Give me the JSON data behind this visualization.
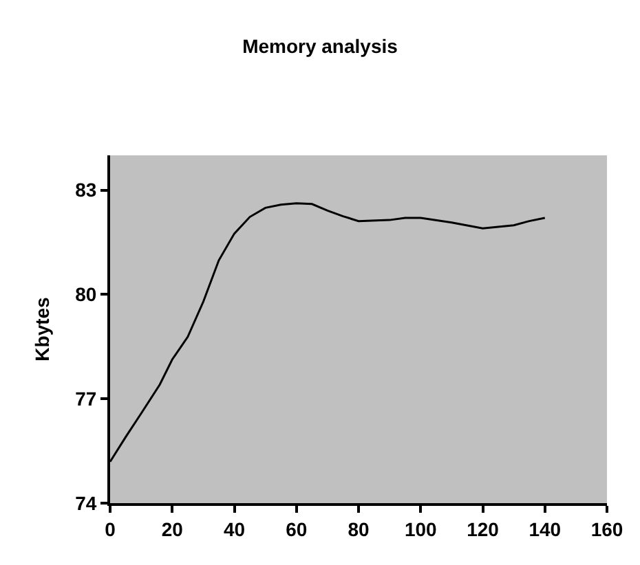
{
  "chart_data": {
    "type": "line",
    "title": "Memory analysis",
    "ylabel": "Kbytes",
    "x": [
      0,
      5,
      10,
      16,
      20,
      25,
      30,
      35,
      40,
      45,
      50,
      55,
      60,
      65,
      70,
      75,
      80,
      90,
      95,
      100,
      110,
      120,
      130,
      135,
      140
    ],
    "series": [
      {
        "color": "#000000",
        "values": [
          75.19,
          75.9,
          76.58,
          77.41,
          78.13,
          78.78,
          79.79,
          80.98,
          81.75,
          82.23,
          82.49,
          82.58,
          82.62,
          82.6,
          82.41,
          82.25,
          82.11,
          82.14,
          82.2,
          82.2,
          82.07,
          81.9,
          81.99,
          82.11,
          82.2
        ]
      }
    ],
    "xlim": [
      0,
      160
    ],
    "xticks": [
      0,
      20,
      40,
      60,
      80,
      100,
      120,
      140,
      160
    ],
    "ylim": [
      74,
      84
    ],
    "yticks": [
      74,
      77,
      80,
      83
    ],
    "grid": false,
    "line_style": "solid"
  }
}
